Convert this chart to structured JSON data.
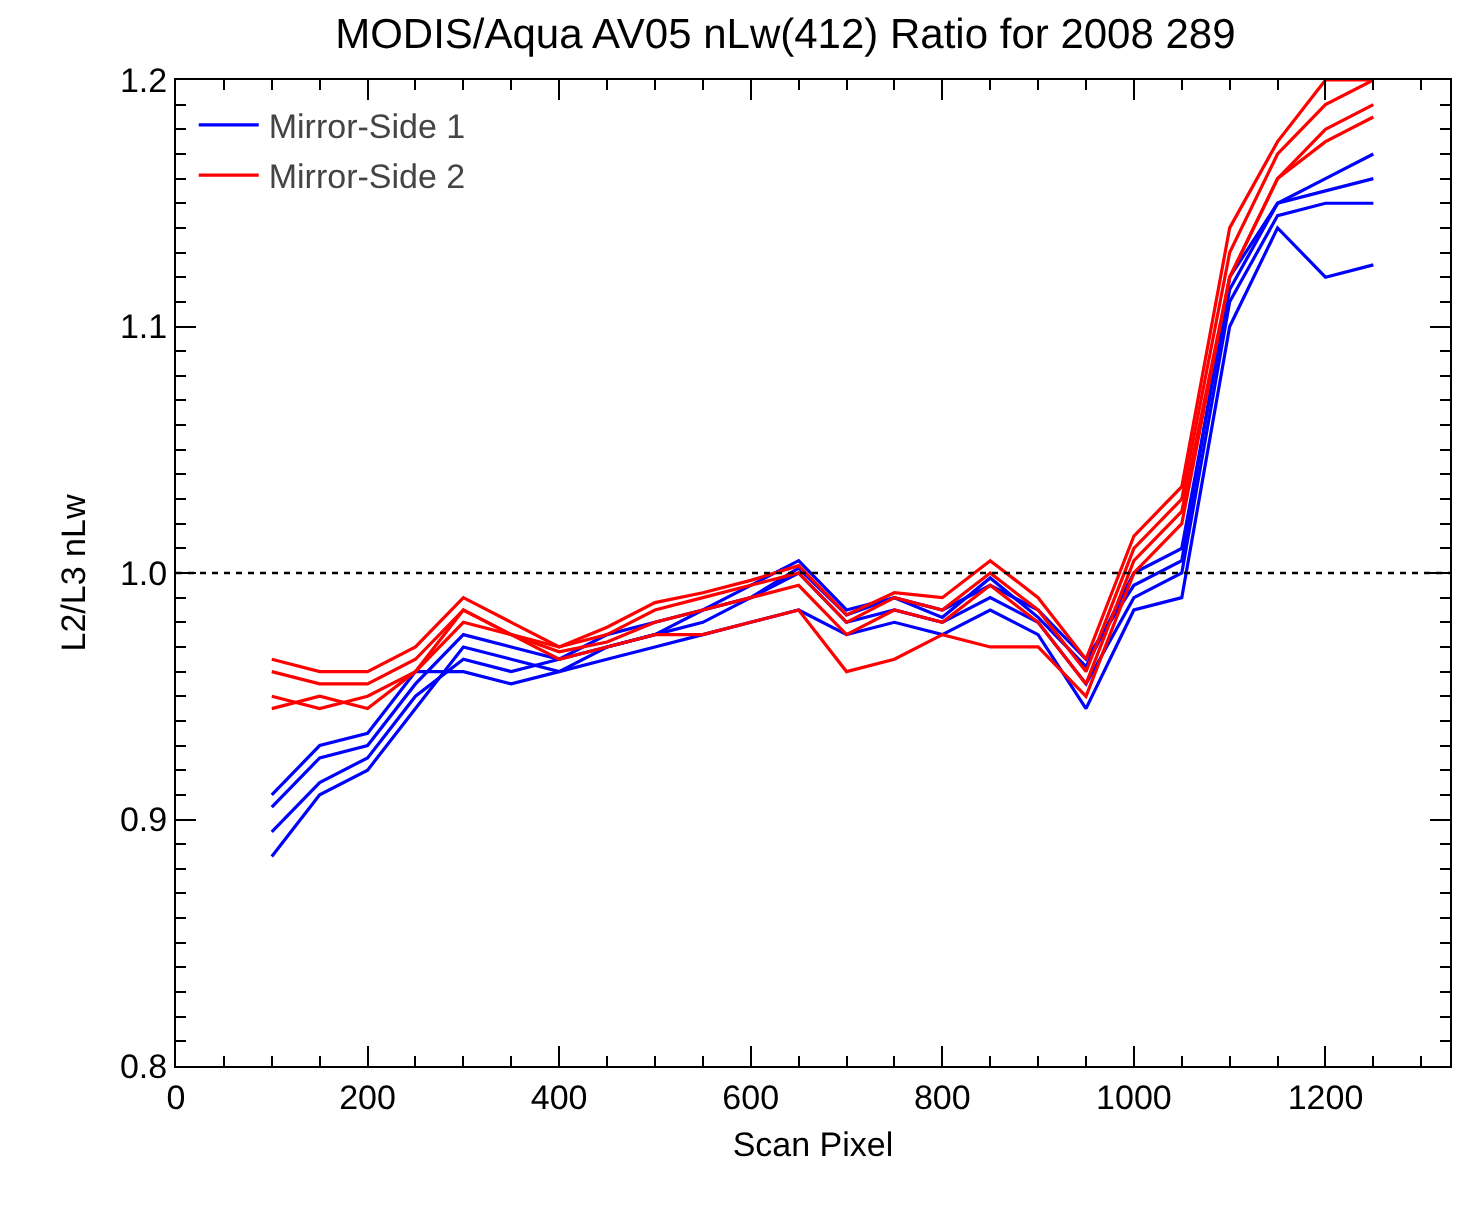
{
  "chart_data": {
    "type": "line",
    "title": "MODIS/Aqua AV05 nLw(412) Ratio for 2008 289",
    "xlabel": "Scan Pixel",
    "ylabel": "L2/L3 nLw",
    "x": [
      100,
      150,
      200,
      250,
      300,
      350,
      400,
      450,
      500,
      550,
      600,
      650,
      700,
      750,
      800,
      850,
      900,
      950,
      1000,
      1050,
      1100,
      1150,
      1200,
      1250
    ],
    "series": [
      {
        "name": "Mirror-Side 1",
        "color": "#0000ff",
        "values": [
          0.905,
          0.925,
          0.93,
          0.955,
          0.975,
          0.97,
          0.965,
          0.975,
          0.98,
          0.985,
          0.995,
          1.005,
          0.985,
          0.99,
          0.985,
          0.995,
          0.985,
          0.965,
          0.995,
          1.005,
          1.12,
          1.15,
          1.155,
          1.16
        ]
      },
      {
        "color": "#0000ff",
        "values": [
          0.885,
          0.91,
          0.92,
          0.945,
          0.97,
          0.965,
          0.96,
          0.97,
          0.975,
          0.98,
          0.99,
          1.0,
          0.98,
          0.985,
          0.98,
          0.99,
          0.98,
          0.955,
          0.99,
          1.0,
          1.11,
          1.145,
          1.15,
          1.15
        ]
      },
      {
        "color": "#0000ff",
        "values": [
          0.895,
          0.915,
          0.925,
          0.95,
          0.965,
          0.96,
          0.965,
          0.97,
          0.975,
          0.985,
          0.99,
          1.002,
          0.983,
          0.99,
          0.982,
          0.998,
          0.982,
          0.962,
          1.0,
          1.01,
          1.115,
          1.15,
          1.16,
          1.17
        ]
      },
      {
        "color": "#0000ff",
        "values": [
          0.91,
          0.93,
          0.935,
          0.96,
          0.96,
          0.955,
          0.96,
          0.965,
          0.97,
          0.975,
          0.98,
          0.985,
          0.975,
          0.98,
          0.975,
          0.985,
          0.975,
          0.945,
          0.985,
          0.99,
          1.1,
          1.14,
          1.12,
          1.125
        ]
      },
      {
        "name": "Mirror-Side 2",
        "color": "#ff0000",
        "values": [
          0.96,
          0.955,
          0.955,
          0.965,
          0.985,
          0.975,
          0.97,
          0.975,
          0.985,
          0.99,
          0.995,
          1.0,
          0.98,
          0.99,
          0.985,
          1.0,
          0.985,
          0.96,
          1.01,
          1.03,
          1.13,
          1.17,
          1.19,
          1.2
        ]
      },
      {
        "color": "#ff0000",
        "values": [
          0.965,
          0.96,
          0.96,
          0.97,
          0.99,
          0.98,
          0.97,
          0.978,
          0.988,
          0.992,
          0.997,
          1.003,
          0.983,
          0.992,
          0.99,
          1.005,
          0.99,
          0.965,
          1.015,
          1.035,
          1.14,
          1.175,
          1.2,
          1.2
        ]
      },
      {
        "color": "#ff0000",
        "values": [
          0.95,
          0.945,
          0.95,
          0.96,
          0.98,
          0.975,
          0.968,
          0.972,
          0.98,
          0.985,
          0.99,
          0.995,
          0.975,
          0.985,
          0.98,
          0.995,
          0.98,
          0.955,
          1.005,
          1.025,
          1.12,
          1.16,
          1.18,
          1.19
        ]
      },
      {
        "color": "#ff0000",
        "values": [
          0.945,
          0.95,
          0.945,
          0.96,
          0.985,
          0.975,
          0.965,
          0.97,
          0.975,
          0.975,
          0.98,
          0.985,
          0.96,
          0.965,
          0.975,
          0.97,
          0.97,
          0.95,
          1.0,
          1.02,
          1.12,
          1.16,
          1.175,
          1.185
        ]
      }
    ],
    "xlim": [
      0,
      1330
    ],
    "ylim": [
      0.8,
      1.2
    ],
    "xticks": [
      0,
      200,
      400,
      600,
      800,
      1000,
      1200
    ],
    "yticks": [
      0.8,
      0.9,
      {
        "value": 1,
        "label": "1.0"
      },
      1.1,
      1.2
    ],
    "ref_lines": [
      {
        "axis": "y",
        "value": 1.0,
        "color": "#000000",
        "line_style": "dotted"
      }
    ],
    "grid": false,
    "legend": "top left",
    "marker": "none",
    "line_style": "solid"
  }
}
